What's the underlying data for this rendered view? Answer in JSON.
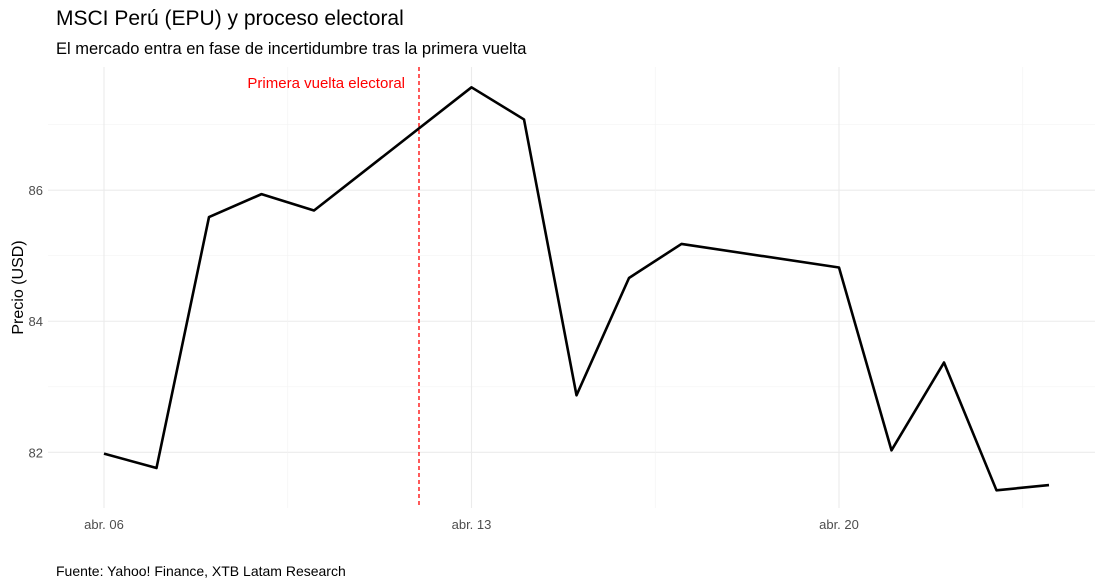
{
  "chart_data": {
    "type": "line",
    "title": "MSCI Perú (EPU) y proceso electoral",
    "subtitle": "El mercado entra en fase de incertidumbre tras la primera vuelta",
    "caption": "Fuente: Yahoo! Finance, XTB Latam Research",
    "xlabel": "",
    "ylabel": "Precio (USD)",
    "x": [
      "04-06",
      "04-07",
      "04-08",
      "04-09",
      "04-10",
      "04-13",
      "04-14",
      "04-15",
      "04-16",
      "04-17",
      "04-20",
      "04-21",
      "04-22",
      "04-23",
      "04-24"
    ],
    "series": [
      {
        "values": [
          81.98,
          81.76,
          85.59,
          85.94,
          85.69,
          87.57,
          87.08,
          82.87,
          84.66,
          85.18,
          84.82,
          82.03,
          83.37,
          81.42,
          81.5
        ],
        "color": "#000000"
      }
    ],
    "ylim": [
      81.15,
      87.88
    ],
    "yticks": [
      82,
      84,
      86
    ],
    "xticks": [
      {
        "x": "04-06",
        "label": "abr. 06"
      },
      {
        "x": "04-13",
        "label": "abr. 13"
      },
      {
        "x": "04-20",
        "label": "abr. 20"
      }
    ],
    "grid": true,
    "vline": {
      "x": "04-12",
      "label": "Primera vuelta electoral",
      "color": "#ff0000",
      "style": "dashed"
    }
  }
}
